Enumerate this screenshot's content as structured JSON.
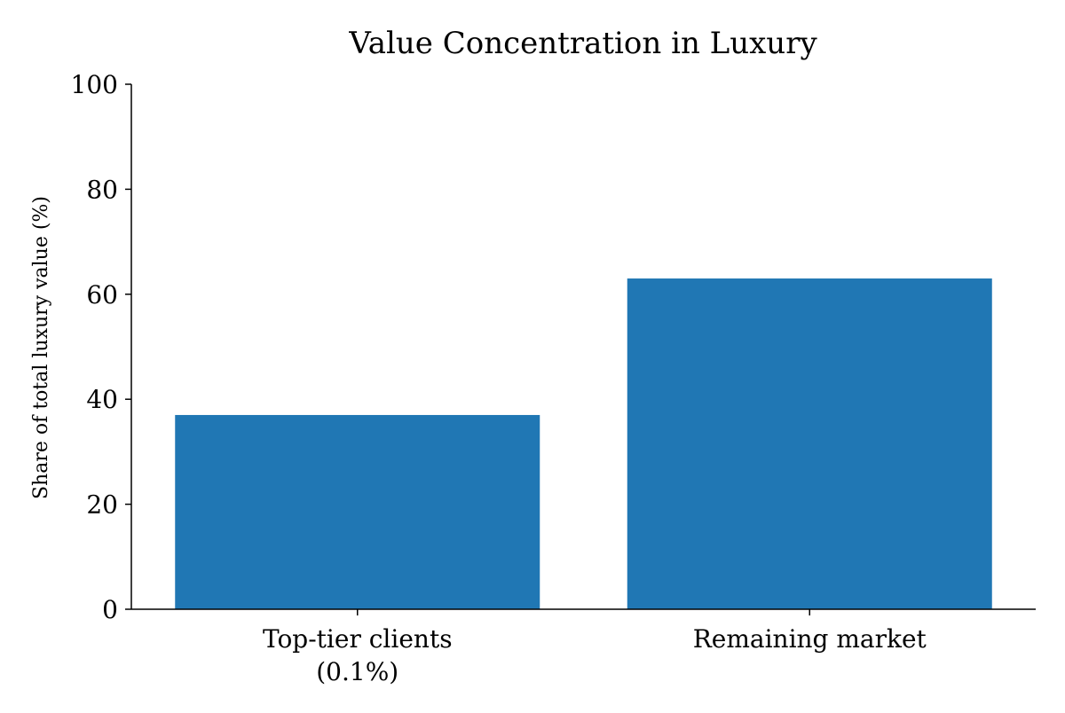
{
  "chart_data": {
    "type": "bar",
    "title": "Value Concentration in Luxury",
    "xlabel": "",
    "ylabel": "Share of total luxury value (%)",
    "categories": [
      [
        "Top-tier clients",
        "(0.1%)"
      ],
      [
        "Remaining market"
      ]
    ],
    "values": [
      37,
      63
    ],
    "ylim": [
      0,
      100
    ],
    "yticks": [
      0,
      20,
      40,
      60,
      80,
      100
    ],
    "grid": false,
    "legend": "none",
    "bar_color": "#2077b4",
    "axis_color": "#000000"
  }
}
